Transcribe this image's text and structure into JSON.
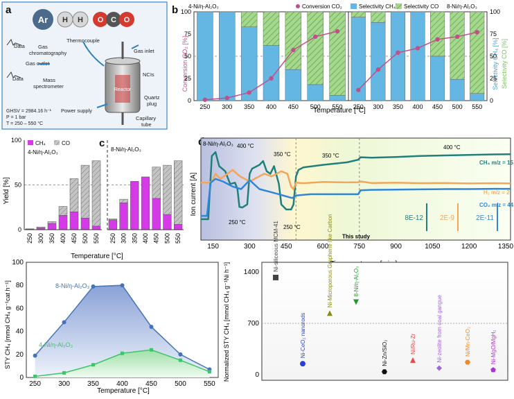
{
  "panel_letters": [
    "a",
    "b",
    "c",
    "d",
    "e",
    "f"
  ],
  "colors": {
    "conv": "#c0508a",
    "ch4": "#65b7e3",
    "co": "#a5d88c",
    "methane": "#d43be6",
    "co_gray": "#bdbdbd",
    "green_line": "#3ec46a",
    "blue_line": "#4673b7"
  },
  "panel_a": {
    "molecules": [
      "Ar",
      "H",
      "H",
      "O",
      "C",
      "O"
    ],
    "labels": {
      "data1": "Data",
      "gc": "Gas\nchromatography",
      "gas_outlet": "Gas outlet",
      "data2": "Data",
      "ms": "Mass\nspectrometer",
      "thermocouple": "Thermocouple",
      "gas_inlet": "Gas inlet",
      "reactor": "Reactor",
      "ncts": "NCIs",
      "quartz": "Quartz\nplug",
      "capillary": "Capillary\ntube",
      "power": "Power supply"
    },
    "conditions": [
      "GHSV = 2984.16 h⁻¹",
      "P = 1 bar",
      "T = 250 – 550 °C"
    ]
  },
  "chart_data": [
    {
      "id": "b",
      "type": "bar+line",
      "title_left": "4-Ni/η-Al₂O₃",
      "title_right": "8-Ni/η-Al₂O₃",
      "legend": [
        "Conversion CO₂",
        "Selectivity CH₄",
        "Selectivity CO"
      ],
      "ylabel_left": "Conversion CO₂ [%]",
      "ylabel_right": [
        "Selectivity CH₄ [%]",
        "Selectivity CO [%]"
      ],
      "xlabel": "Temperature [°C]",
      "categories": [
        250,
        300,
        350,
        400,
        450,
        500,
        550
      ],
      "ylim": [
        0,
        100
      ],
      "yticks": [
        0,
        25,
        50,
        75,
        100
      ],
      "series_left": {
        "sel_ch4": [
          100,
          100,
          83,
          62,
          35,
          18,
          6
        ],
        "conversion": [
          1,
          3,
          9,
          25,
          57,
          72,
          78
        ]
      },
      "series_right": {
        "sel_ch4": [
          94,
          88,
          100,
          100,
          50,
          24,
          8
        ],
        "conversion": [
          12,
          35,
          54,
          59,
          69,
          72,
          77
        ]
      }
    },
    {
      "id": "c_left",
      "type": "stacked-bar",
      "title": "4-Ni/η-Al₂O₃",
      "legend": [
        "CH₄",
        "CO"
      ],
      "ylabel": "Yield [%]",
      "xlabel": "Temperature [°C]",
      "categories": [
        250,
        300,
        350,
        400,
        450,
        500,
        550
      ],
      "ylim": [
        0,
        100
      ],
      "yticks": [
        0,
        50,
        100
      ],
      "ch4": [
        0.5,
        2,
        7,
        16,
        20,
        13,
        4
      ],
      "co": [
        0.5,
        1,
        2,
        10,
        37,
        59,
        73
      ]
    },
    {
      "id": "c_right",
      "type": "stacked-bar",
      "title": "8-Ni/η-Al₂O₃",
      "categories": [
        250,
        300,
        350,
        400,
        450,
        500,
        550
      ],
      "ylim": [
        0,
        100
      ],
      "ch4": [
        11,
        30,
        54,
        59,
        35,
        17,
        6
      ],
      "co": [
        1,
        4,
        0,
        0,
        35,
        55,
        71
      ]
    },
    {
      "id": "d",
      "type": "line",
      "title": "8-Ni/η-Al₂O₃",
      "xlabel": "Time on stream [min.]",
      "ylabel": "Ion current [A]",
      "xticks": [
        150,
        300,
        450,
        600,
        750,
        900,
        1050,
        1200,
        1350
      ],
      "xlim": [
        100,
        1370
      ],
      "series": [
        {
          "name": "CH₄  m/z = 15",
          "x": [
            100,
            130,
            145,
            160,
            175,
            200,
            220,
            240,
            250,
            258,
            270,
            290,
            300,
            310,
            330,
            340,
            355,
            370,
            385,
            400,
            420,
            430,
            450,
            470,
            480,
            490,
            500,
            520,
            600,
            700,
            745,
            755,
            800,
            900,
            1000,
            1100,
            1200,
            1300,
            1370
          ],
          "y": [
            8.2,
            8.2,
            33,
            34.5,
            29,
            27,
            22,
            22.5,
            20,
            13,
            12.8,
            14,
            26,
            28,
            29,
            29.5,
            31,
            27,
            26,
            29,
            22,
            14,
            12,
            12,
            14,
            25,
            27.5,
            28.5,
            29.5,
            30.5,
            31.5,
            32.5,
            32.3,
            32.6,
            33,
            33.2,
            33.4,
            33.6,
            33.7
          ]
        },
        {
          "name": "H₂  m/z = 2",
          "x": [
            100,
            130,
            145,
            160,
            180,
            230,
            260,
            300,
            360,
            390,
            430,
            455,
            470,
            480,
            490,
            520,
            600,
            700,
            745,
            755,
            800,
            900,
            1000,
            1100,
            1200,
            1300,
            1370
          ],
          "y": [
            22.5,
            22.5,
            23,
            26,
            24,
            27.5,
            25,
            23,
            26,
            25,
            27,
            26,
            21,
            20,
            22.5,
            22.3,
            22.8,
            22.6,
            22.7,
            23,
            22.4,
            22.5,
            22.3,
            22.4,
            22.2,
            22.3,
            22.2
          ]
        },
        {
          "name": "CO₂  m/z = 44",
          "x": [
            100,
            125,
            140,
            160,
            190,
            230,
            265,
            300,
            340,
            380,
            420,
            455,
            475,
            490,
            550,
            700,
            745,
            755,
            800,
            900,
            1000,
            1100,
            1200,
            1300,
            1370
          ],
          "y": [
            9.5,
            9.5,
            22.5,
            24,
            23,
            21,
            20,
            23.5,
            20,
            19,
            18,
            17,
            16.5,
            17.5,
            18,
            18,
            18,
            19.5,
            19.7,
            19.8,
            19.9,
            20,
            20,
            20.1,
            20.1
          ]
        }
      ],
      "annotations": {
        "t400a": "400 °C",
        "t350a": "350 °C",
        "t250a": "250 °C",
        "t250b": "250 °C",
        "t350b": "350 °C",
        "t400b": "400 °C"
      },
      "scalebars": [
        "8E-12",
        "2E-9",
        "2E-11"
      ]
    },
    {
      "id": "e",
      "type": "line",
      "xlabel": "Temperature [°C]",
      "ylabel": "STY CH₄ [mmol CH₄ g⁻¹cat h⁻¹]",
      "x": [
        250,
        300,
        350,
        400,
        450,
        500,
        550
      ],
      "ylim": [
        0,
        100
      ],
      "yticks": [
        0,
        20,
        40,
        60,
        80,
        100
      ],
      "series": [
        {
          "name": "8-Ni/η-Al₂O₃",
          "values": [
            19,
            48,
            79,
            80,
            44,
            20,
            7
          ]
        },
        {
          "name": "4-Ni/η-Al₂O₃",
          "values": [
            1,
            4,
            11,
            21,
            24,
            15,
            5
          ]
        }
      ]
    },
    {
      "id": "f",
      "type": "scatter",
      "ylabel": "Normalized STY CH₄ [mmol CH₄ g⁻¹Ni h⁻¹]",
      "ylim": [
        0,
        1400
      ],
      "yticks": [
        0,
        700,
        1400
      ],
      "points": [
        {
          "label": "Ni-siliceous MCM-41",
          "value": 1325,
          "color": "#444444",
          "marker": "square"
        },
        {
          "label": "Ni-CeO₂ nanorods",
          "value": 150,
          "color": "#2a3fd8",
          "marker": "circle"
        },
        {
          "label": "Ni-Microporous Graphene like Carbon",
          "value": 840,
          "color": "#8a8a1a",
          "marker": "triangle"
        },
        {
          "label": "8-Ni/η-Al₂O₃",
          "value": 990,
          "color": "#1f9a2a",
          "marker": "triangle-down",
          "note": "This study"
        },
        {
          "label": "Ni-Zn/SiO₂",
          "value": 40,
          "color": "#111111",
          "marker": "hexagon"
        },
        {
          "label": "Ni/Ru-Zr",
          "value": 200,
          "color": "#e84a4a",
          "marker": "triangle"
        },
        {
          "label": "Ni-zeolite from coal gangue",
          "value": 90,
          "color": "#a065e0",
          "marker": "diamond"
        },
        {
          "label": "Ni/Mn-CeO₂",
          "value": 170,
          "color": "#f08a28",
          "marker": "hexagon"
        },
        {
          "label": "Ni-MgO/MgH₂",
          "value": 65,
          "color": "#b030d0",
          "marker": "pentagon"
        }
      ]
    }
  ]
}
